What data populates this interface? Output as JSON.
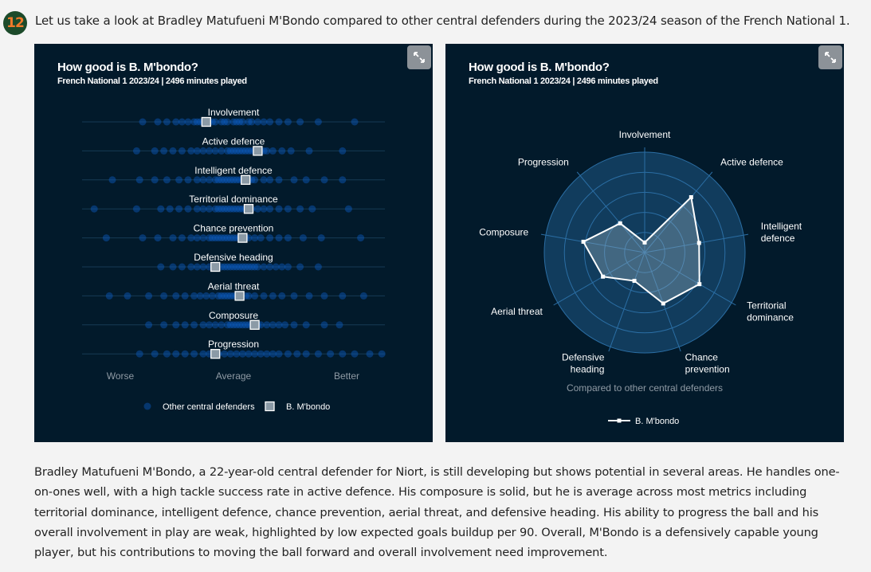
{
  "intro": {
    "avatar_text": "12",
    "avatar_color": "#f07a2a",
    "text": "Let us take a look at Bradley Matufueni M'Bondo compared to other central defenders during the 2023/24 season of the French National 1."
  },
  "colors": {
    "panel_bg": "#021a2b",
    "dot": "#0b5cc2",
    "player_marker": "#8b9aa6",
    "radar_fill": "#1f5a86",
    "radar_line": "#ffffff"
  },
  "icons": {
    "expand": "expand-icon"
  },
  "chart_data": [
    {
      "type": "strip",
      "title": "How good is B. M'bondo?",
      "subtitle": "French National 1 2023/24 | 2496 minutes played",
      "axis_labels": {
        "worse": "Worse",
        "average": "Average",
        "better": "Better"
      },
      "legend": {
        "others": "Other central defenders",
        "player": "B. M'bondo",
        "placement": "bottom"
      },
      "metrics": [
        {
          "name": "Involvement",
          "player_value": 0.41,
          "others": [
            0.2,
            0.25,
            0.28,
            0.31,
            0.33,
            0.35,
            0.37,
            0.38,
            0.39,
            0.4,
            0.42,
            0.43,
            0.44,
            0.46,
            0.47,
            0.48,
            0.5,
            0.51,
            0.52,
            0.53,
            0.55,
            0.56,
            0.58,
            0.6,
            0.62,
            0.65,
            0.68,
            0.72,
            0.78,
            0.9
          ]
        },
        {
          "name": "Active defence",
          "player_value": 0.58,
          "others": [
            0.18,
            0.24,
            0.27,
            0.3,
            0.33,
            0.36,
            0.38,
            0.4,
            0.42,
            0.44,
            0.46,
            0.48,
            0.49,
            0.5,
            0.51,
            0.52,
            0.53,
            0.54,
            0.55,
            0.56,
            0.57,
            0.59,
            0.6,
            0.61,
            0.63,
            0.66,
            0.69,
            0.75,
            0.86
          ]
        },
        {
          "name": "Intelligent defence",
          "player_value": 0.54,
          "others": [
            0.1,
            0.19,
            0.24,
            0.28,
            0.32,
            0.35,
            0.38,
            0.4,
            0.42,
            0.44,
            0.45,
            0.46,
            0.47,
            0.48,
            0.49,
            0.5,
            0.51,
            0.52,
            0.53,
            0.55,
            0.56,
            0.57,
            0.6,
            0.62,
            0.65,
            0.7,
            0.74,
            0.8,
            0.86
          ]
        },
        {
          "name": "Territorial dominance",
          "player_value": 0.55,
          "others": [
            0.04,
            0.18,
            0.26,
            0.29,
            0.32,
            0.35,
            0.38,
            0.4,
            0.42,
            0.44,
            0.45,
            0.46,
            0.47,
            0.48,
            0.49,
            0.5,
            0.51,
            0.52,
            0.53,
            0.54,
            0.56,
            0.58,
            0.6,
            0.62,
            0.65,
            0.68,
            0.72,
            0.76,
            0.88
          ]
        },
        {
          "name": "Chance prevention",
          "player_value": 0.53,
          "others": [
            0.08,
            0.2,
            0.25,
            0.3,
            0.33,
            0.36,
            0.38,
            0.4,
            0.42,
            0.43,
            0.44,
            0.45,
            0.46,
            0.47,
            0.48,
            0.49,
            0.5,
            0.51,
            0.52,
            0.54,
            0.55,
            0.57,
            0.59,
            0.62,
            0.65,
            0.68,
            0.73,
            0.79,
            0.92
          ]
        },
        {
          "name": "Defensive heading",
          "player_value": 0.44,
          "others": [
            0.26,
            0.3,
            0.33,
            0.36,
            0.38,
            0.4,
            0.42,
            0.44,
            0.46,
            0.47,
            0.48,
            0.49,
            0.5,
            0.51,
            0.52,
            0.53,
            0.54,
            0.55,
            0.56,
            0.57,
            0.58,
            0.6,
            0.62,
            0.64,
            0.66,
            0.68,
            0.72,
            0.78
          ]
        },
        {
          "name": "Aerial threat",
          "player_value": 0.52,
          "others": [
            0.09,
            0.15,
            0.22,
            0.27,
            0.31,
            0.34,
            0.37,
            0.39,
            0.41,
            0.43,
            0.45,
            0.46,
            0.47,
            0.48,
            0.49,
            0.5,
            0.51,
            0.52,
            0.54,
            0.55,
            0.57,
            0.6,
            0.63,
            0.66,
            0.7,
            0.75,
            0.8,
            0.86,
            0.93
          ]
        },
        {
          "name": "Composure",
          "player_value": 0.57,
          "others": [
            0.22,
            0.27,
            0.31,
            0.34,
            0.37,
            0.4,
            0.42,
            0.44,
            0.46,
            0.48,
            0.49,
            0.5,
            0.51,
            0.52,
            0.53,
            0.54,
            0.55,
            0.56,
            0.58,
            0.59,
            0.61,
            0.63,
            0.65,
            0.67,
            0.7,
            0.74,
            0.8,
            0.85
          ]
        },
        {
          "name": "Progression",
          "player_value": 0.44,
          "others": [
            0.19,
            0.24,
            0.28,
            0.31,
            0.34,
            0.37,
            0.4,
            0.42,
            0.45,
            0.47,
            0.49,
            0.51,
            0.53,
            0.55,
            0.57,
            0.59,
            0.61,
            0.63,
            0.65,
            0.68,
            0.71,
            0.74,
            0.78,
            0.82,
            0.86,
            0.9,
            0.95,
            0.99
          ]
        }
      ]
    },
    {
      "type": "radar",
      "title": "How good is B. M'bondo?",
      "subtitle": "French National 1 2023/24 | 2496 minutes played",
      "footnote": "Compared to other central defenders",
      "legend": {
        "player": "B. M'bondo",
        "placement": "bottom"
      },
      "range": [
        0,
        100
      ],
      "axes": [
        {
          "label_lines": [
            "Involvement"
          ],
          "value": 10
        },
        {
          "label_lines": [
            "Active defence"
          ],
          "value": 72
        },
        {
          "label_lines": [
            "Intelligent",
            "defence"
          ],
          "value": 55
        },
        {
          "label_lines": [
            "Territorial",
            "dominance"
          ],
          "value": 63
        },
        {
          "label_lines": [
            "Chance",
            "prevention"
          ],
          "value": 54
        },
        {
          "label_lines": [
            "Defensive",
            "heading"
          ],
          "value": 30
        },
        {
          "label_lines": [
            "Aerial threat"
          ],
          "value": 48
        },
        {
          "label_lines": [
            "Composure"
          ],
          "value": 62
        },
        {
          "label_lines": [
            "Progression"
          ],
          "value": 38
        }
      ]
    }
  ],
  "paragraph": "Bradley Matufueni M'Bondo, a 22-year-old central defender for Niort, is still developing but shows potential in several areas. He handles one-on-ones well, with a high tackle success rate in active defence. His composure is solid, but he is average across most metrics including territorial dominance, intelligent defence, chance prevention, aerial threat, and defensive heading. His ability to progress the ball and his overall involvement in play are weak, highlighted by low expected goals buildup per 90. Overall, M'Bondo is a defensively capable young player, but his contributions to moving the ball forward and overall involvement need improvement."
}
